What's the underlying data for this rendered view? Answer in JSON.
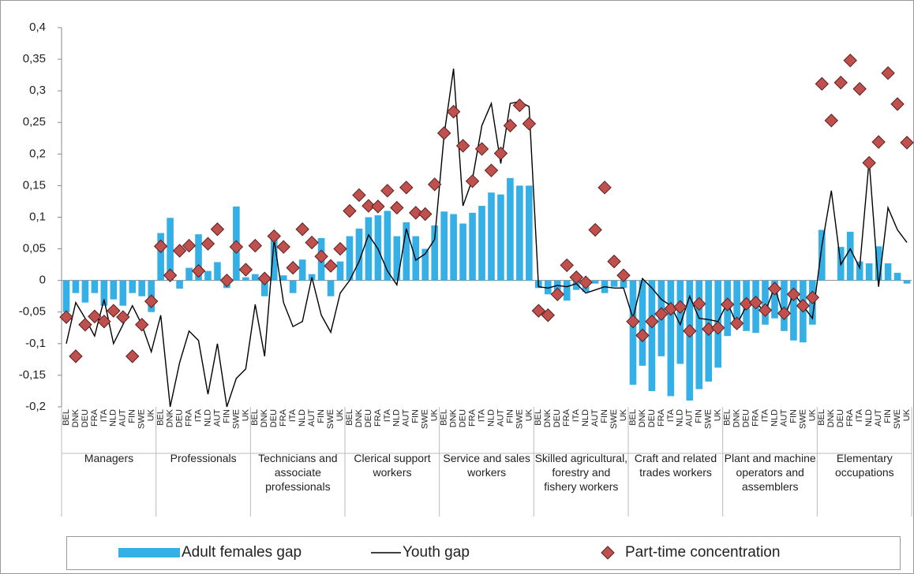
{
  "chart_data": {
    "type": "combo",
    "legend": "bottom",
    "groups": [
      "Managers",
      "Professionals",
      "Technicians and associate professionals",
      "Clerical support workers",
      "Service and sales workers",
      "Skilled agricultural, forestry and fishery workers",
      "Craft and related trades workers",
      "Plant and machine operators and assemblers",
      "Elementary occupations"
    ],
    "categories": [
      "BEL",
      "DNK",
      "DEU",
      "FRA",
      "ITA",
      "NLD",
      "AUT",
      "FIN",
      "SWE",
      "UK",
      "BEL",
      "DNK",
      "DEU",
      "FRA",
      "ITA",
      "NLD",
      "AUT",
      "FIN",
      "SWE",
      "UK",
      "BEL",
      "DNK",
      "DEU",
      "FRA",
      "ITA",
      "NLD",
      "AUT",
      "FIN",
      "SWE",
      "UK",
      "BEL",
      "DNK",
      "DEU",
      "FRA",
      "ITA",
      "NLD",
      "AUT",
      "FIN",
      "SWE",
      "UK",
      "BEL",
      "DNK",
      "DEU",
      "FRA",
      "ITA",
      "NLD",
      "AUT",
      "FIN",
      "SWE",
      "UK",
      "BEL",
      "DNK",
      "DEU",
      "FRA",
      "ITA",
      "NLD",
      "AUT",
      "FIN",
      "SWE",
      "UK",
      "BEL",
      "DNK",
      "DEU",
      "FRA",
      "ITA",
      "NLD",
      "AUT",
      "FIN",
      "SWE",
      "UK",
      "BEL",
      "DNK",
      "DEU",
      "FRA",
      "ITA",
      "NLD",
      "AUT",
      "FIN",
      "SWE",
      "UK",
      "BEL",
      "DNK",
      "DEU",
      "FRA",
      "ITA",
      "NLD",
      "AUT",
      "FIN",
      "SWE",
      "UK"
    ],
    "series": [
      {
        "name": "Adult females gap",
        "type": "bar",
        "color": "#35b0e6",
        "values": [
          -0.05,
          -0.02,
          -0.035,
          -0.02,
          -0.04,
          -0.03,
          -0.04,
          -0.02,
          -0.025,
          -0.05,
          0.075,
          0.099,
          -0.013,
          0.02,
          0.073,
          0.015,
          0.029,
          -0.012,
          0.117,
          0.005,
          0.01,
          -0.025,
          0.065,
          0.008,
          -0.02,
          0.033,
          0.01,
          0.067,
          -0.025,
          0.03,
          0.07,
          0.082,
          0.1,
          0.103,
          0.11,
          0.07,
          0.092,
          0.07,
          0.05,
          0.087,
          0.109,
          0.105,
          0.09,
          0.107,
          0.118,
          0.139,
          0.136,
          0.162,
          0.15,
          0.15,
          -0.012,
          -0.022,
          -0.02,
          -0.032,
          -0.015,
          -0.018,
          -0.005,
          -0.02,
          -0.01,
          -0.012,
          -0.165,
          -0.135,
          -0.175,
          -0.12,
          -0.183,
          -0.132,
          -0.19,
          -0.172,
          -0.16,
          -0.138,
          -0.088,
          -0.075,
          -0.08,
          -0.083,
          -0.07,
          -0.06,
          -0.08,
          -0.095,
          -0.098,
          -0.07,
          0.08,
          0.0,
          0.053,
          0.077,
          0.03,
          0.027,
          0.054,
          0.027,
          0.012,
          -0.005
        ]
      },
      {
        "name": "Youth gap",
        "type": "line",
        "color": "#000000",
        "values": [
          -0.1,
          -0.035,
          -0.06,
          -0.088,
          -0.03,
          -0.1,
          -0.07,
          -0.04,
          -0.07,
          -0.113,
          -0.055,
          -0.2,
          -0.13,
          -0.08,
          -0.095,
          -0.18,
          -0.1,
          -0.2,
          -0.155,
          -0.14,
          -0.038,
          -0.12,
          0.065,
          -0.035,
          -0.073,
          -0.065,
          0.005,
          -0.055,
          -0.082,
          -0.02,
          0.0,
          0.03,
          0.072,
          0.05,
          0.015,
          -0.007,
          0.082,
          0.032,
          0.042,
          0.065,
          0.23,
          0.335,
          0.118,
          0.16,
          0.245,
          0.28,
          0.185,
          0.28,
          0.283,
          0.275,
          -0.01,
          -0.012,
          -0.008,
          -0.01,
          -0.005,
          -0.02,
          -0.015,
          -0.01,
          -0.012,
          -0.012,
          -0.06,
          0.003,
          -0.012,
          -0.03,
          -0.04,
          -0.07,
          -0.025,
          -0.06,
          -0.062,
          -0.065,
          -0.035,
          -0.07,
          -0.04,
          -0.035,
          -0.05,
          -0.01,
          -0.06,
          -0.02,
          -0.04,
          -0.06,
          0.055,
          0.142,
          0.025,
          0.05,
          0.02,
          0.19,
          -0.01,
          0.115,
          0.08,
          0.06
        ]
      },
      {
        "name": "Part-time concentration",
        "type": "scatter",
        "color": "#c0504d",
        "values": [
          -0.058,
          -0.12,
          -0.07,
          -0.057,
          -0.065,
          -0.048,
          -0.058,
          -0.12,
          -0.07,
          -0.033,
          0.054,
          0.008,
          0.047,
          0.055,
          0.015,
          0.058,
          0.081,
          0.0,
          0.053,
          0.017,
          0.055,
          0.003,
          0.07,
          0.053,
          0.02,
          0.081,
          0.06,
          0.038,
          0.023,
          0.05,
          0.11,
          0.135,
          0.118,
          0.117,
          0.142,
          0.115,
          0.147,
          0.107,
          0.105,
          0.152,
          0.233,
          0.267,
          0.213,
          0.157,
          0.208,
          0.174,
          0.201,
          0.245,
          0.277,
          0.248,
          -0.048,
          -0.055,
          -0.022,
          0.024,
          0.005,
          -0.003,
          0.08,
          0.147,
          0.03,
          0.008,
          -0.065,
          -0.087,
          -0.065,
          -0.053,
          -0.045,
          -0.042,
          -0.08,
          -0.037,
          -0.077,
          -0.075,
          -0.038,
          -0.068,
          -0.037,
          -0.035,
          -0.047,
          -0.013,
          -0.052,
          -0.022,
          -0.04,
          -0.027,
          0.311,
          0.253,
          0.313,
          0.348,
          0.303,
          0.186,
          0.219,
          0.328,
          0.279,
          0.218
        ]
      }
    ],
    "ylim": [
      -0.2,
      0.4
    ],
    "yticks": [
      {
        "value": -0.2,
        "label": "-0,2"
      },
      {
        "value": -0.15,
        "label": "-0,15"
      },
      {
        "value": -0.1,
        "label": "-0,1"
      },
      {
        "value": -0.05,
        "label": "-0,05"
      },
      0,
      {
        "value": 0.05,
        "label": "0,05"
      },
      {
        "value": 0.1,
        "label": "0,1"
      },
      {
        "value": 0.15,
        "label": "0,15"
      },
      {
        "value": 0.2,
        "label": "0,2"
      },
      {
        "value": 0.25,
        "label": "0,25"
      },
      {
        "value": 0.3,
        "label": "0,3"
      },
      {
        "value": 0.35,
        "label": "0,35"
      },
      {
        "value": 0.4,
        "label": "0,4"
      }
    ]
  }
}
